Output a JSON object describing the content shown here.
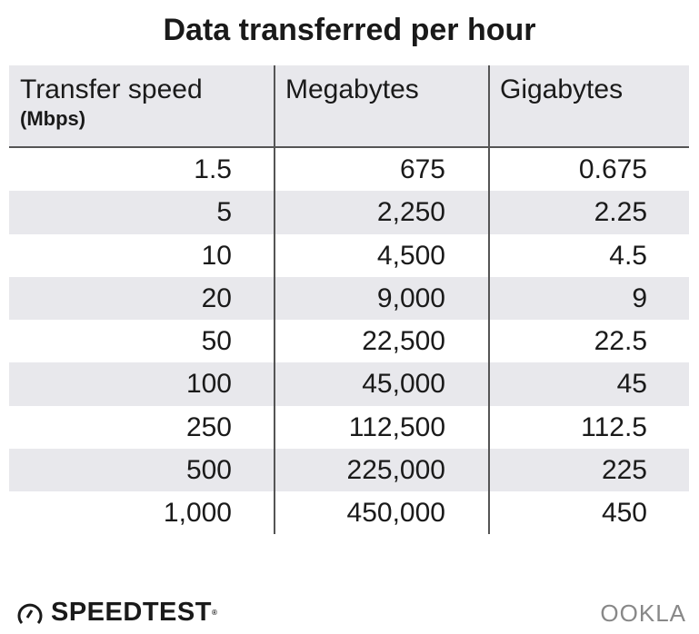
{
  "chart_data": {
    "type": "table",
    "title": "Data transferred per hour",
    "columns": [
      {
        "label": "Transfer speed",
        "sublabel": "(Mbps)"
      },
      {
        "label": "Megabytes"
      },
      {
        "label": "Gigabytes"
      }
    ],
    "rows": [
      [
        "1.5",
        "675",
        "0.675"
      ],
      [
        "5",
        "2,250",
        "2.25"
      ],
      [
        "10",
        "4,500",
        "4.5"
      ],
      [
        "20",
        "9,000",
        "9"
      ],
      [
        "50",
        "22,500",
        "22.5"
      ],
      [
        "100",
        "45,000",
        "45"
      ],
      [
        "250",
        "112,500",
        "112.5"
      ],
      [
        "500",
        "225,000",
        "225"
      ],
      [
        "1,000",
        "450,000",
        "450"
      ]
    ]
  },
  "footer": {
    "left_logo": "SPEEDTEST",
    "right_logo": "OOKLA"
  },
  "colors": {
    "stripe": "#e8e8ec",
    "rule": "#555555",
    "text": "#1a1a1a"
  }
}
